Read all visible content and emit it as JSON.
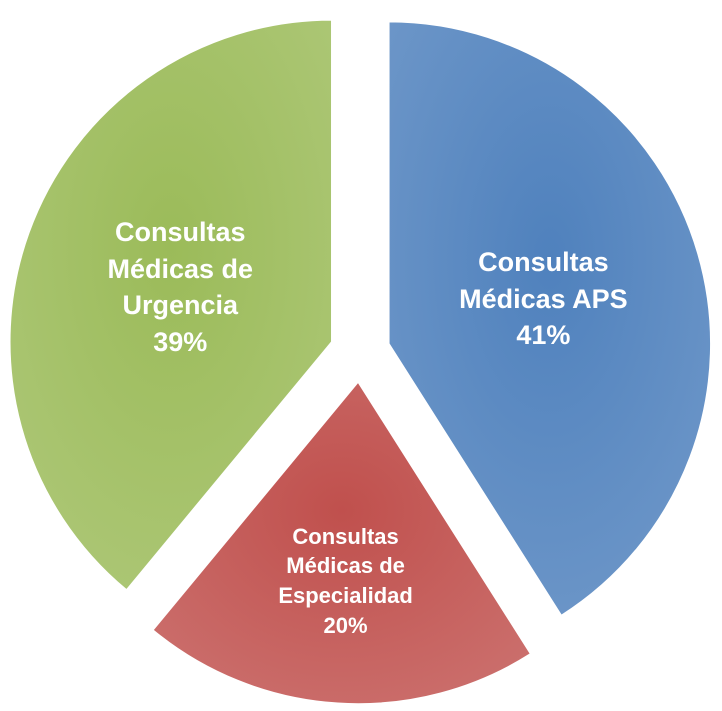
{
  "chart_data": {
    "type": "pie",
    "categories": [
      "Consultas Médicas APS",
      "Consultas Médicas de Especialidad",
      "Consultas Médicas de Urgencia"
    ],
    "values": [
      41,
      20,
      39
    ],
    "value_labels": [
      "41%",
      "20%",
      "39%"
    ],
    "colors": [
      "#4f81bd",
      "#c0504d",
      "#9bbb59"
    ]
  }
}
